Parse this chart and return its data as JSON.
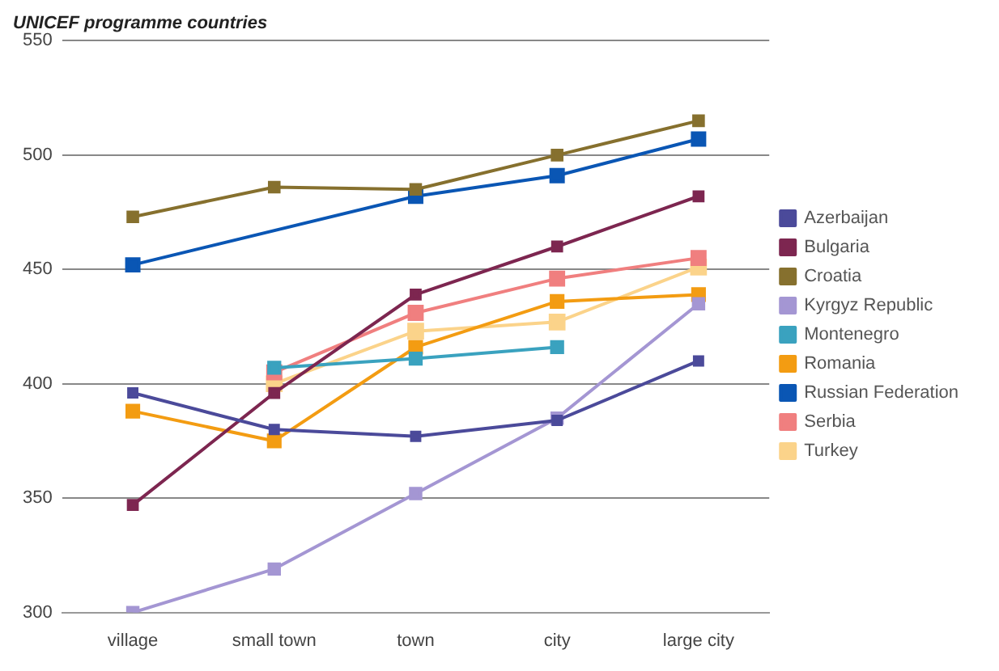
{
  "chart_data": {
    "type": "line",
    "title": "UNICEF programme countries",
    "categories": [
      "village",
      "small town",
      "town",
      "city",
      "large city"
    ],
    "ylim": [
      300,
      550
    ],
    "yticks": [
      300,
      350,
      400,
      450,
      500,
      550
    ],
    "grid": "y",
    "legend": "right",
    "marker": "square",
    "line_style": "solid",
    "series": [
      {
        "name": "Azerbaijan",
        "color": "#4b4a9a",
        "values": [
          396,
          380,
          377,
          384,
          410
        ]
      },
      {
        "name": "Bulgaria",
        "color": "#7d2650",
        "values": [
          347,
          396,
          439,
          460,
          482
        ]
      },
      {
        "name": "Croatia",
        "color": "#86702e",
        "values": [
          473,
          486,
          485,
          500,
          515
        ]
      },
      {
        "name": "Kyrgyz Republic",
        "color": "#a496d3",
        "values": [
          300,
          319,
          352,
          385,
          435
        ]
      },
      {
        "name": "Montenegro",
        "color": "#3aa2bf",
        "values": [
          null,
          407,
          411,
          416,
          null
        ]
      },
      {
        "name": "Romania",
        "color": "#f39c12",
        "values": [
          388,
          375,
          416,
          436,
          439
        ]
      },
      {
        "name": "Russian Federation",
        "color": "#0a56b4",
        "values": [
          452,
          null,
          482,
          491,
          507
        ]
      },
      {
        "name": "Serbia",
        "color": "#f07f7f",
        "values": [
          null,
          405,
          431,
          446,
          455
        ]
      },
      {
        "name": "Turkey",
        "color": "#fbd38a",
        "values": [
          null,
          400,
          423,
          427,
          451
        ]
      }
    ]
  }
}
